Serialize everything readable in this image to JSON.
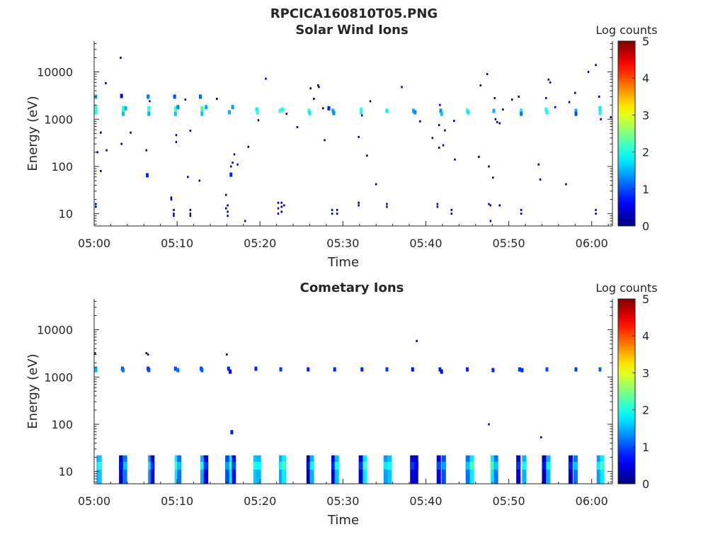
{
  "figure": {
    "title": "RPCICA160810T05.PNG"
  },
  "chart_data": [
    {
      "type": "heatmap",
      "title": "Solar Wind Ions",
      "xlabel": "Time",
      "ylabel": "Energy (eV)",
      "x_ticks": [
        "05:00",
        "05:10",
        "05:20",
        "05:30",
        "05:40",
        "05:50",
        "06:00"
      ],
      "y_ticks": [
        "10",
        "100",
        "1000",
        "10000"
      ],
      "y_scale": "log",
      "x_range_minutes_after_0500": [
        0,
        62.5
      ],
      "ylim": [
        5.5,
        45000
      ],
      "colorbar": {
        "label": "Log counts",
        "ticks": [
          "0",
          "1",
          "2",
          "3",
          "4",
          "5"
        ],
        "range": [
          0,
          5
        ],
        "colormap": "jet"
      },
      "points": [
        [
          0.2,
          1800,
          2
        ],
        [
          0.2,
          1600,
          2.2
        ],
        [
          0.2,
          1400,
          2
        ],
        [
          0.2,
          3000,
          1.5
        ],
        [
          0.2,
          16,
          0.2
        ],
        [
          0.2,
          14,
          0.2
        ],
        [
          0.4,
          200,
          0.2
        ],
        [
          0.8,
          80,
          0.3
        ],
        [
          0.8,
          520,
          0.2
        ],
        [
          1.4,
          5800,
          0.2
        ],
        [
          1.5,
          220,
          0.2
        ],
        [
          3.2,
          20000,
          0.2
        ],
        [
          3.3,
          3100,
          0.6
        ],
        [
          3.5,
          1700,
          2.1
        ],
        [
          3.5,
          1500,
          2.2
        ],
        [
          3.5,
          1300,
          1.6
        ],
        [
          3.8,
          1700,
          1.5
        ],
        [
          3.3,
          300,
          0.2
        ],
        [
          4.4,
          520,
          0.2
        ],
        [
          6.5,
          3000,
          1.2
        ],
        [
          6.6,
          1700,
          2
        ],
        [
          6.6,
          1500,
          2.2
        ],
        [
          6.6,
          1300,
          1.5
        ],
        [
          6.7,
          2400,
          0.4
        ],
        [
          6.3,
          220,
          0.2
        ],
        [
          6.4,
          65,
          0.8
        ],
        [
          9.7,
          3000,
          1
        ],
        [
          9.8,
          1700,
          2.1
        ],
        [
          9.8,
          1500,
          2.3
        ],
        [
          9.8,
          1300,
          1.6
        ],
        [
          10.1,
          1800,
          1.3
        ],
        [
          9.3,
          22,
          0.2
        ],
        [
          9.3,
          20,
          0.2
        ],
        [
          9.6,
          12,
          0.2
        ],
        [
          9.6,
          10,
          0.2
        ],
        [
          9.6,
          9,
          0.2
        ],
        [
          9.9,
          460,
          0.2
        ],
        [
          9.9,
          330,
          0.2
        ],
        [
          11,
          2600,
          0.4
        ],
        [
          11.3,
          60,
          0.2
        ],
        [
          11.6,
          12,
          0.2
        ],
        [
          11.6,
          10,
          0.2
        ],
        [
          11.6,
          9,
          0.2
        ],
        [
          12.8,
          3000,
          1.1
        ],
        [
          13,
          1700,
          2.2
        ],
        [
          13,
          1500,
          2.2
        ],
        [
          13,
          1300,
          1.6
        ],
        [
          13.5,
          1800,
          1.5
        ],
        [
          12.7,
          50,
          0.2
        ],
        [
          11.6,
          570,
          0.2
        ],
        [
          14.8,
          2700,
          0.2
        ],
        [
          15.9,
          25,
          0.3
        ],
        [
          15.9,
          13,
          0.2
        ],
        [
          16.1,
          15,
          0.2
        ],
        [
          16.1,
          11,
          0.2
        ],
        [
          16.1,
          9,
          0.2
        ],
        [
          16.3,
          1400,
          1.5
        ],
        [
          16.7,
          1800,
          1.4
        ],
        [
          16.5,
          100,
          0.4
        ],
        [
          16.5,
          67,
          0.8
        ],
        [
          16.7,
          120,
          0.2
        ],
        [
          16.9,
          180,
          0.4
        ],
        [
          17.3,
          110,
          0.2
        ],
        [
          18.2,
          7,
          0.2
        ],
        [
          18.6,
          260,
          0.2
        ],
        [
          19.6,
          1600,
          1.8
        ],
        [
          19.7,
          1400,
          2
        ],
        [
          19.8,
          950,
          0.2
        ],
        [
          20.7,
          7200,
          0.4
        ],
        [
          22.4,
          1500,
          2.2
        ],
        [
          22.7,
          1600,
          2
        ],
        [
          22.2,
          17,
          0.2
        ],
        [
          22.2,
          13,
          0.2
        ],
        [
          22.2,
          10,
          0.2
        ],
        [
          22.6,
          17,
          0.2
        ],
        [
          22.6,
          14,
          0.2
        ],
        [
          22.6,
          11,
          0.2
        ],
        [
          22.9,
          15,
          0.2
        ],
        [
          23.2,
          1300,
          0.2
        ],
        [
          24.5,
          680,
          0.2
        ],
        [
          25.9,
          1500,
          2.1
        ],
        [
          26,
          1350,
          1.8
        ],
        [
          26.1,
          4500,
          0.2
        ],
        [
          26.5,
          2700,
          0.2
        ],
        [
          27,
          5200,
          0.2
        ],
        [
          27.1,
          4800,
          0.3
        ],
        [
          27.6,
          1700,
          0.3
        ],
        [
          27.8,
          360,
          0.2
        ],
        [
          28.8,
          1500,
          1.5
        ],
        [
          28.9,
          1350,
          1.3
        ],
        [
          28.3,
          1700,
          0.8
        ],
        [
          28.7,
          12,
          0.2
        ],
        [
          28.7,
          10,
          0.2
        ],
        [
          29.3,
          12,
          0.2
        ],
        [
          29.3,
          10,
          0.2
        ],
        [
          32.2,
          1600,
          2.1
        ],
        [
          32.2,
          1400,
          2
        ],
        [
          31.9,
          420,
          0.2
        ],
        [
          31.9,
          15,
          0.2
        ],
        [
          31.9,
          17,
          0.2
        ],
        [
          32.3,
          1200,
          0.4
        ],
        [
          33.3,
          2400,
          0.2
        ],
        [
          32.9,
          170,
          0.2
        ],
        [
          34,
          42,
          0.2
        ],
        [
          35.3,
          1500,
          1.8
        ],
        [
          35.3,
          16,
          0.2
        ],
        [
          35.3,
          14,
          0.2
        ],
        [
          37.1,
          4800,
          0.2
        ],
        [
          38.5,
          1500,
          1.5
        ],
        [
          38.7,
          1400,
          1.3
        ],
        [
          39.3,
          900,
          0.2
        ],
        [
          40.8,
          400,
          0.2
        ],
        [
          41.4,
          16,
          0.2
        ],
        [
          41.4,
          14,
          0.2
        ],
        [
          41.8,
          1500,
          1.3
        ],
        [
          41.9,
          1300,
          1.6
        ],
        [
          41.7,
          2000,
          0.4
        ],
        [
          41.6,
          250,
          0.2
        ],
        [
          41.6,
          750,
          0.2
        ],
        [
          42.3,
          580,
          0.2
        ],
        [
          42.1,
          280,
          0.2
        ],
        [
          43.1,
          10,
          0.2
        ],
        [
          43.1,
          12,
          0.2
        ],
        [
          43.5,
          140,
          0.2
        ],
        [
          43.4,
          920,
          0.2
        ],
        [
          45,
          1500,
          2
        ],
        [
          45.1,
          1400,
          1.8
        ],
        [
          46.4,
          160,
          0.2
        ],
        [
          46.6,
          5200,
          0.2
        ],
        [
          47.4,
          9000,
          0.3
        ],
        [
          47.6,
          16,
          0.3
        ],
        [
          47.8,
          15,
          0.3
        ],
        [
          47.6,
          100,
          0.2
        ],
        [
          47.8,
          7,
          0.2
        ],
        [
          48.1,
          58,
          0.2
        ],
        [
          48.2,
          1500,
          1.5
        ],
        [
          48.3,
          2800,
          0.2
        ],
        [
          48.4,
          1000,
          0.2
        ],
        [
          48.6,
          870,
          0.2
        ],
        [
          48.9,
          820,
          0.2
        ],
        [
          48.9,
          15,
          0.2
        ],
        [
          49.3,
          1600,
          0.2
        ],
        [
          50.4,
          2600,
          0.2
        ],
        [
          51.5,
          1500,
          1.8
        ],
        [
          51.5,
          1300,
          1.2
        ],
        [
          51.5,
          12,
          0.2
        ],
        [
          51.5,
          10,
          0.2
        ],
        [
          51.2,
          3000,
          0.2
        ],
        [
          53.6,
          110,
          0.2
        ],
        [
          53.8,
          53,
          0.2
        ],
        [
          54.5,
          1600,
          2
        ],
        [
          54.6,
          1400,
          1.9
        ],
        [
          54.5,
          2800,
          0.2
        ],
        [
          54.8,
          6900,
          0.3
        ],
        [
          55,
          6000,
          0.2
        ],
        [
          55.6,
          1800,
          0.2
        ],
        [
          56.9,
          42,
          0.2
        ],
        [
          57.3,
          2300,
          0.3
        ],
        [
          58,
          3600,
          0.3
        ],
        [
          58.1,
          1500,
          1.5
        ],
        [
          58.1,
          1300,
          1
        ],
        [
          59.6,
          10000,
          0.2
        ],
        [
          60.5,
          14000,
          0.3
        ],
        [
          60.5,
          12,
          0.2
        ],
        [
          60.5,
          10,
          0.2
        ],
        [
          60.9,
          3000,
          0.2
        ],
        [
          61,
          1500,
          2.2
        ],
        [
          61,
          1350,
          2
        ],
        [
          61,
          1700,
          1.8
        ],
        [
          61.1,
          1000,
          0.2
        ],
        [
          62.3,
          1100,
          0.2
        ]
      ]
    },
    {
      "type": "heatmap",
      "title": "Cometary Ions",
      "xlabel": "Time",
      "ylabel": "Energy (eV)",
      "x_ticks": [
        "05:00",
        "05:10",
        "05:20",
        "05:30",
        "05:40",
        "05:50",
        "06:00"
      ],
      "y_ticks": [
        "10",
        "100",
        "1000",
        "10000"
      ],
      "y_scale": "log",
      "x_range_minutes_after_0500": [
        0,
        62.5
      ],
      "ylim": [
        5.5,
        45000
      ],
      "colorbar": {
        "label": "Log counts",
        "ticks": [
          "0",
          "1",
          "2",
          "3",
          "4",
          "5"
        ],
        "range": [
          0,
          5
        ],
        "colormap": "jet"
      },
      "points": [
        [
          0.1,
          3200,
          0.2
        ],
        [
          0.2,
          1500,
          1.2
        ],
        [
          0.2,
          1400,
          1.5
        ],
        [
          3.4,
          1500,
          1
        ],
        [
          3.5,
          1400,
          1.2
        ],
        [
          6.3,
          3200,
          0.3
        ],
        [
          6.5,
          3000,
          0.4
        ],
        [
          6.5,
          1500,
          0.8
        ],
        [
          6.6,
          1400,
          1
        ],
        [
          9.8,
          1500,
          1
        ],
        [
          10.1,
          1400,
          1.2
        ],
        [
          12.9,
          1500,
          1
        ],
        [
          13,
          1400,
          1.1
        ],
        [
          16,
          3000,
          0.2
        ],
        [
          16.2,
          1500,
          0.8
        ],
        [
          16.4,
          1300,
          0.6
        ],
        [
          16.6,
          68,
          0.8
        ],
        [
          19.5,
          1500,
          0.8
        ],
        [
          22.5,
          1450,
          0.9
        ],
        [
          25.8,
          1450,
          0.8
        ],
        [
          29,
          1450,
          0.8
        ],
        [
          32.3,
          1450,
          0.8
        ],
        [
          35.3,
          1450,
          0.9
        ],
        [
          38.4,
          1450,
          0.7
        ],
        [
          38.9,
          5800,
          0.2
        ],
        [
          41.7,
          1450,
          0.8
        ],
        [
          41.9,
          1300,
          0.6
        ],
        [
          45,
          1450,
          0.8
        ],
        [
          47.6,
          100,
          0.2
        ],
        [
          48.1,
          1400,
          0.8
        ],
        [
          51.3,
          1450,
          0.9
        ],
        [
          51.6,
          1400,
          0.8
        ],
        [
          53.9,
          53,
          0.3
        ],
        [
          54.6,
          1450,
          1
        ],
        [
          58.1,
          1450,
          0.9
        ],
        [
          61,
          1450,
          1.1
        ]
      ],
      "bands": [
        [
          0.3,
          1.3,
          1.2
        ],
        [
          0.4,
          1.3,
          1.6
        ],
        [
          3.0,
          1.2,
          0.3
        ],
        [
          3.5,
          1.2,
          1.2
        ],
        [
          6.5,
          1.3,
          1.4
        ],
        [
          6.8,
          1.2,
          0.4
        ],
        [
          9.7,
          1.4,
          1.8
        ],
        [
          10.0,
          1.3,
          1.2
        ],
        [
          12.8,
          1.3,
          1.5
        ],
        [
          13.2,
          1.4,
          0.5
        ],
        [
          15.8,
          1.3,
          1
        ],
        [
          16.3,
          1.4,
          1.8
        ],
        [
          16.6,
          1.2,
          0.6
        ],
        [
          19.2,
          1.4,
          1.6
        ],
        [
          19.6,
          1.3,
          1.5
        ],
        [
          22.3,
          1.4,
          1.4
        ],
        [
          22.6,
          1.4,
          1.8
        ],
        [
          25.6,
          1.3,
          0.3
        ],
        [
          26.0,
          1.3,
          1.5
        ],
        [
          28.6,
          1.3,
          0.4
        ],
        [
          29.0,
          1.3,
          1.6
        ],
        [
          31.9,
          1.3,
          0.5
        ],
        [
          32.4,
          1.3,
          1.8
        ],
        [
          34.9,
          1.3,
          1.4
        ],
        [
          35.4,
          1.2,
          1.6
        ],
        [
          38.1,
          1.3,
          0.5
        ],
        [
          38.6,
          1.2,
          0.2
        ],
        [
          41.3,
          1.3,
          0.6
        ],
        [
          41.9,
          1.3,
          1
        ],
        [
          44.8,
          1.4,
          1.2
        ],
        [
          45.3,
          1.3,
          1.8
        ],
        [
          47.8,
          1.4,
          1.8
        ],
        [
          48.2,
          1.3,
          1.2
        ],
        [
          50.9,
          1.3,
          0.5
        ],
        [
          51.6,
          1.3,
          1.5
        ],
        [
          54.0,
          1.3,
          0.3
        ],
        [
          54.5,
          1.3,
          1.5
        ],
        [
          57.2,
          1.3,
          0.4
        ],
        [
          57.8,
          1.3,
          1.2
        ],
        [
          60.6,
          1.3,
          1.4
        ],
        [
          61.0,
          1.3,
          1.8
        ]
      ]
    }
  ]
}
